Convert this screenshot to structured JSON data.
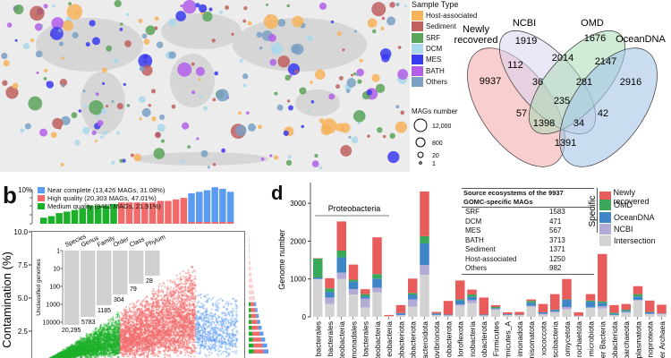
{
  "map_legend": {
    "title": "Sample Type",
    "items": [
      {
        "label": "Host-associated",
        "color": "#f7b35a"
      },
      {
        "label": "Sediment",
        "color": "#c06060"
      },
      {
        "label": "SRF",
        "color": "#5aa55a"
      },
      {
        "label": "DCM",
        "color": "#a9d8ea"
      },
      {
        "label": "MES",
        "color": "#3a3aef"
      },
      {
        "label": "BATH",
        "color": "#b25ee8"
      },
      {
        "label": "Others",
        "color": "#7aa0c4"
      }
    ],
    "size_title": "MAGs number",
    "sizes": [
      "12,000",
      "800",
      "20",
      "1"
    ]
  },
  "venn": {
    "labels": [
      "Newly",
      "recovered",
      "NCBI",
      "OMD",
      "OceanDNA"
    ],
    "values": [
      "1919",
      "1676",
      "9937",
      "112",
      "2014",
      "2147",
      "2916",
      "36",
      "281",
      "235",
      "57",
      "42",
      "1398",
      "34",
      "1391"
    ]
  },
  "panel_b": {
    "letter": "b",
    "top_axis": "10%",
    "legend": [
      {
        "label": "Near complete (13,426 MAGs, 31.08%)",
        "color": "#5b9bf0"
      },
      {
        "label": "High quality (20,303 MAGs, 47.01%)",
        "color": "#f26b6b"
      },
      {
        "label": "Medium quality (9462 MAGs, 21.91%)",
        "color": "#1db02a"
      }
    ],
    "ylabel": "Contamination (%)",
    "yticks": [
      "10.0",
      "7.5",
      "5.0",
      "2.5"
    ],
    "inset": {
      "ylabel": "Unclassified genomes",
      "yticks": [
        "1",
        "10",
        "100",
        "1000",
        "10000"
      ],
      "ranks": [
        "Species",
        "Genus",
        "Family",
        "Order",
        "Class",
        "Phylum"
      ],
      "values": [
        "20,295",
        "5783",
        "1185",
        "304",
        "79",
        "28"
      ]
    }
  },
  "panel_d": {
    "letter": "d",
    "ylabel": "Genome number",
    "yticks": [
      "0",
      "1000",
      "2000",
      "3000"
    ],
    "group_label": "Proteobacteria",
    "table": {
      "title1": "Source ecosystems of the 9937",
      "title2": "GOMC-specific MAGs",
      "rows": [
        [
          "SRF",
          "1583"
        ],
        [
          "DCM",
          "471"
        ],
        [
          "MES",
          "567"
        ],
        [
          "BATH",
          "3713"
        ],
        [
          "Sediment",
          "1371"
        ],
        [
          "Host-associated",
          "1250"
        ],
        [
          "Others",
          "982"
        ]
      ]
    },
    "legend_title": "Specific",
    "legend": [
      {
        "label": "Newly recovered",
        "color": "#e85c5c"
      },
      {
        "label": "OMD",
        "color": "#3aa85a"
      },
      {
        "label": "OceanDNA",
        "color": "#3f86c8"
      },
      {
        "label": "NCBI",
        "color": "#b3aad6"
      },
      {
        "label": "Intersection",
        "color": "#d3d3d3"
      }
    ]
  },
  "chart_data": {
    "type": "bar",
    "stacked": true,
    "ylabel": "Genome number",
    "ylim": [
      0,
      3400
    ],
    "categories": [
      "bacterales",
      "bacterales",
      "oteobacteria",
      "monadales",
      "bacterales",
      "oteobacteria",
      "eobacteria",
      "obacteriota",
      "obacteriota",
      "acteroidota",
      "ovibrionota",
      "obacterota",
      "loroflexota",
      "nobacteria",
      "obacterota",
      "Firmicutes",
      "rmicutes_A",
      "imonadota",
      "nisomatota",
      "xococcota",
      "scibacteria",
      "omycetota",
      "rochaetota",
      "microbiota",
      "er Bacteria",
      "obacteriota",
      "barchaeota",
      "oplasmatota",
      "noproteota",
      "er Archaea"
    ],
    "series": [
      {
        "name": "Intersection",
        "values": [
          1000,
          340,
          1000,
          590,
          250,
          650,
          20,
          40,
          270,
          1110,
          40,
          30,
          290,
          360,
          30,
          180,
          40,
          40,
          270,
          60,
          110,
          200,
          20,
          240,
          220,
          40,
          110,
          430,
          70,
          70
        ]
      },
      {
        "name": "NCBI",
        "values": [
          0,
          170,
          170,
          140,
          230,
          120,
          0,
          10,
          190,
          260,
          10,
          10,
          40,
          80,
          10,
          30,
          10,
          10,
          20,
          20,
          30,
          60,
          0,
          10,
          60,
          10,
          20,
          20,
          10,
          10
        ]
      },
      {
        "name": "OceanDNA",
        "values": [
          40,
          150,
          400,
          200,
          60,
          240,
          0,
          50,
          120,
          570,
          40,
          20,
          110,
          90,
          20,
          20,
          20,
          10,
          80,
          40,
          40,
          190,
          10,
          150,
          90,
          30,
          30,
          90,
          40,
          10
        ]
      },
      {
        "name": "OMD",
        "values": [
          500,
          90,
          180,
          50,
          60,
          120,
          0,
          0,
          50,
          190,
          0,
          0,
          20,
          60,
          0,
          30,
          0,
          0,
          50,
          0,
          10,
          10,
          0,
          30,
          40,
          30,
          30,
          60,
          10,
          0
        ]
      },
      {
        "name": "Newly recovered",
        "values": [
          10,
          270,
          770,
          400,
          130,
          970,
          30,
          210,
          380,
          1180,
          40,
          360,
          500,
          130,
          450,
          50,
          50,
          70,
          40,
          220,
          410,
          540,
          90,
          170,
          1250,
          200,
          150,
          210,
          300,
          230
        ]
      }
    ]
  }
}
